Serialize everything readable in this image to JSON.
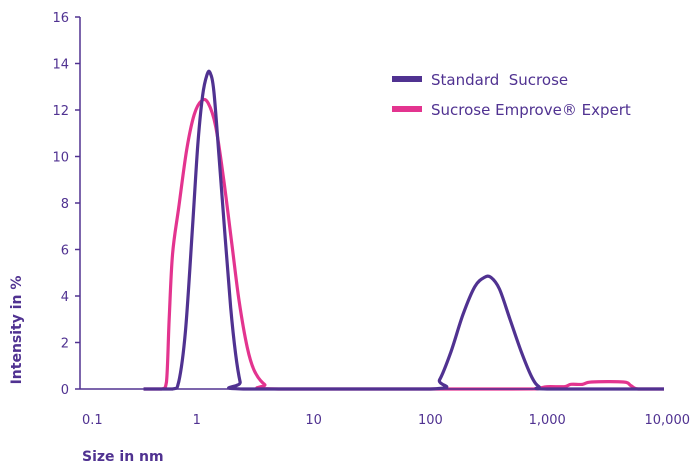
{
  "chart_data": {
    "type": "line",
    "xlabel": "Size in nm",
    "ylabel": "Intensity in %",
    "x_scale": "log",
    "xlim": [
      0.1,
      10000
    ],
    "ylim": [
      0,
      16
    ],
    "x_ticks": [
      {
        "value": 0.1,
        "label": "0.1"
      },
      {
        "value": 1,
        "label": "1"
      },
      {
        "value": 10,
        "label": "10"
      },
      {
        "value": 100,
        "label": "100"
      },
      {
        "value": 1000,
        "label": "1,000"
      },
      {
        "value": 10000,
        "label": "10,000"
      }
    ],
    "y_ticks": [
      {
        "value": 0,
        "label": "0"
      },
      {
        "value": 2,
        "label": "2"
      },
      {
        "value": 4,
        "label": "4"
      },
      {
        "value": 6,
        "label": "6"
      },
      {
        "value": 8,
        "label": "8"
      },
      {
        "value": 10,
        "label": "10"
      },
      {
        "value": 12,
        "label": "12"
      },
      {
        "value": 14,
        "label": "14"
      },
      {
        "value": 16,
        "label": "16"
      }
    ],
    "grid": false,
    "legend_position": "top-right",
    "series": [
      {
        "name": "Standard  Sucrose",
        "color": "#503291",
        "points": [
          [
            0.35,
            0
          ],
          [
            0.62,
            0
          ],
          [
            0.7,
            0.3
          ],
          [
            0.8,
            2.5
          ],
          [
            0.92,
            7.0
          ],
          [
            1.02,
            10.5
          ],
          [
            1.12,
            12.6
          ],
          [
            1.22,
            13.5
          ],
          [
            1.3,
            13.6
          ],
          [
            1.4,
            12.8
          ],
          [
            1.55,
            10.0
          ],
          [
            1.75,
            6.5
          ],
          [
            1.95,
            3.5
          ],
          [
            2.15,
            1.5
          ],
          [
            2.35,
            0.3
          ],
          [
            2.5,
            0
          ],
          [
            100,
            0
          ],
          [
            120,
            0.4
          ],
          [
            150,
            1.6
          ],
          [
            190,
            3.2
          ],
          [
            240,
            4.4
          ],
          [
            290,
            4.8
          ],
          [
            330,
            4.8
          ],
          [
            390,
            4.3
          ],
          [
            480,
            3.0
          ],
          [
            600,
            1.6
          ],
          [
            740,
            0.5
          ],
          [
            850,
            0.1
          ],
          [
            1000,
            0
          ],
          [
            10000,
            0
          ]
        ]
      },
      {
        "name": "Sucrose Emprove® Expert",
        "color": "#E3348F",
        "points": [
          [
            0.35,
            0
          ],
          [
            0.5,
            0
          ],
          [
            0.55,
            0.3
          ],
          [
            0.58,
            3.0
          ],
          [
            0.62,
            5.8
          ],
          [
            0.7,
            7.8
          ],
          [
            0.82,
            10.3
          ],
          [
            0.95,
            11.8
          ],
          [
            1.1,
            12.4
          ],
          [
            1.25,
            12.3
          ],
          [
            1.45,
            11.3
          ],
          [
            1.7,
            9.0
          ],
          [
            2.0,
            6.2
          ],
          [
            2.3,
            3.8
          ],
          [
            2.7,
            1.8
          ],
          [
            3.1,
            0.8
          ],
          [
            3.8,
            0.2
          ],
          [
            5.0,
            0
          ],
          [
            500,
            0
          ],
          [
            800,
            0.02
          ],
          [
            1000,
            0.1
          ],
          [
            1400,
            0.1
          ],
          [
            1600,
            0.2
          ],
          [
            2000,
            0.2
          ],
          [
            2400,
            0.3
          ],
          [
            4500,
            0.3
          ],
          [
            5200,
            0.15
          ],
          [
            6000,
            0
          ],
          [
            10000,
            0
          ]
        ]
      }
    ]
  }
}
